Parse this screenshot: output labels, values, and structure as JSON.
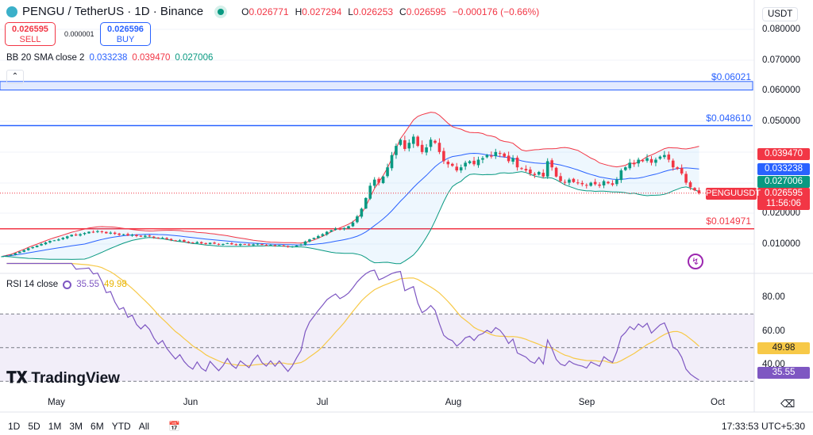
{
  "header": {
    "symbol": "PENGU / TetherUS · 1D · Binance",
    "open": "0.026771",
    "high": "0.027294",
    "low": "0.026253",
    "close": "0.026595",
    "change": "−0.000176 (−0.66%)",
    "o_label": "O",
    "h_label": "H",
    "l_label": "L",
    "c_label": "C"
  },
  "trade": {
    "sell_price": "0.026595",
    "sell_label": "SELL",
    "spread": "0.000001",
    "buy_price": "0.026596",
    "buy_label": "BUY"
  },
  "currency": "USDT",
  "bb_legend": {
    "label": "BB 20 SMA close 2",
    "basis": "0.033238",
    "upper": "0.039470",
    "lower": "0.027006"
  },
  "rsi_legend": {
    "label": "RSI 14 close",
    "rsi": "35.55",
    "ma": "49.98"
  },
  "price_axis": [
    "0.080000",
    "0.070000",
    "0.060000",
    "0.050000",
    "0.020000",
    "0.010000"
  ],
  "rsi_axis": [
    "80.00",
    "60.00",
    "40.00"
  ],
  "months": [
    "May",
    "Jun",
    "Jul",
    "Aug",
    "Sep",
    "Oct"
  ],
  "price_tags": {
    "upper": "0.039470",
    "basis": "0.033238",
    "lower": "0.027006",
    "last": "0.026595",
    "countdown": "11:56:06",
    "symbol": "PENGUUSDT",
    "rsi": "35.55",
    "rsi_ma": "49.98"
  },
  "levels": [
    {
      "label": "$0.06021",
      "price": 0.06021,
      "color": "#2962ff"
    },
    {
      "label": "$0.048610",
      "price": 0.04861,
      "color": "#2962ff"
    },
    {
      "label": "$0.014971",
      "price": 0.014971,
      "color": "#f23645"
    }
  ],
  "timeframes": [
    "1D",
    "5D",
    "1M",
    "3M",
    "6M",
    "YTD",
    "All"
  ],
  "clock": "17:33:53 UTC+5:30",
  "logo": "TradingView",
  "colors": {
    "up": "#089981",
    "down": "#f23645",
    "bb_basis": "#2962ff",
    "bb_upper": "#f23645",
    "bb_lower": "#089981",
    "rsi": "#7e57c2",
    "rsi_ma": "#f7c948"
  },
  "chart_data": {
    "type": "candlestick",
    "start_date": "2025-04-18",
    "interval": "1D",
    "ylim": [
      0.005,
      0.085
    ],
    "rsi_ylim": [
      20,
      90
    ],
    "rsi_bands": [
      30,
      50,
      70
    ],
    "closes": [
      0.006,
      0.0062,
      0.0065,
      0.007,
      0.0075,
      0.008,
      0.0086,
      0.009,
      0.0095,
      0.01,
      0.0105,
      0.011,
      0.0112,
      0.0115,
      0.012,
      0.0125,
      0.013,
      0.0128,
      0.0132,
      0.0136,
      0.014,
      0.0138,
      0.0142,
      0.0139,
      0.0135,
      0.0137,
      0.0133,
      0.013,
      0.0132,
      0.0128,
      0.013,
      0.0126,
      0.0124,
      0.0127,
      0.0125,
      0.0121,
      0.0118,
      0.012,
      0.0116,
      0.0113,
      0.011,
      0.0112,
      0.0108,
      0.0105,
      0.0103,
      0.0106,
      0.0102,
      0.01,
      0.0104,
      0.0101,
      0.0098,
      0.01,
      0.0103,
      0.0099,
      0.0097,
      0.01,
      0.0098,
      0.0096,
      0.0099,
      0.0101,
      0.0097,
      0.0095,
      0.0097,
      0.0094,
      0.0096,
      0.0093,
      0.009,
      0.0092,
      0.0095,
      0.0098,
      0.0108,
      0.0115,
      0.012,
      0.0126,
      0.0132,
      0.014,
      0.0145,
      0.015,
      0.0148,
      0.0152,
      0.0158,
      0.017,
      0.019,
      0.0215,
      0.025,
      0.029,
      0.031,
      0.03,
      0.032,
      0.035,
      0.039,
      0.042,
      0.044,
      0.041,
      0.043,
      0.045,
      0.042,
      0.04,
      0.0415,
      0.044,
      0.043,
      0.04,
      0.037,
      0.036,
      0.0355,
      0.034,
      0.035,
      0.0365,
      0.037,
      0.036,
      0.0375,
      0.038,
      0.039,
      0.0385,
      0.04,
      0.0395,
      0.0385,
      0.037,
      0.038,
      0.035,
      0.0345,
      0.034,
      0.033,
      0.0325,
      0.0335,
      0.032,
      0.037,
      0.035,
      0.032,
      0.0305,
      0.03,
      0.031,
      0.0302,
      0.0298,
      0.0295,
      0.029,
      0.03,
      0.0295,
      0.029,
      0.0305,
      0.0298,
      0.0293,
      0.031,
      0.034,
      0.035,
      0.0365,
      0.036,
      0.0375,
      0.037,
      0.038,
      0.0365,
      0.0375,
      0.0385,
      0.039,
      0.0375,
      0.035,
      0.0345,
      0.033,
      0.03,
      0.0285,
      0.0275,
      0.026595
    ],
    "indicators": [
      "BB 20 SMA close 2",
      "RSI 14 close"
    ]
  }
}
